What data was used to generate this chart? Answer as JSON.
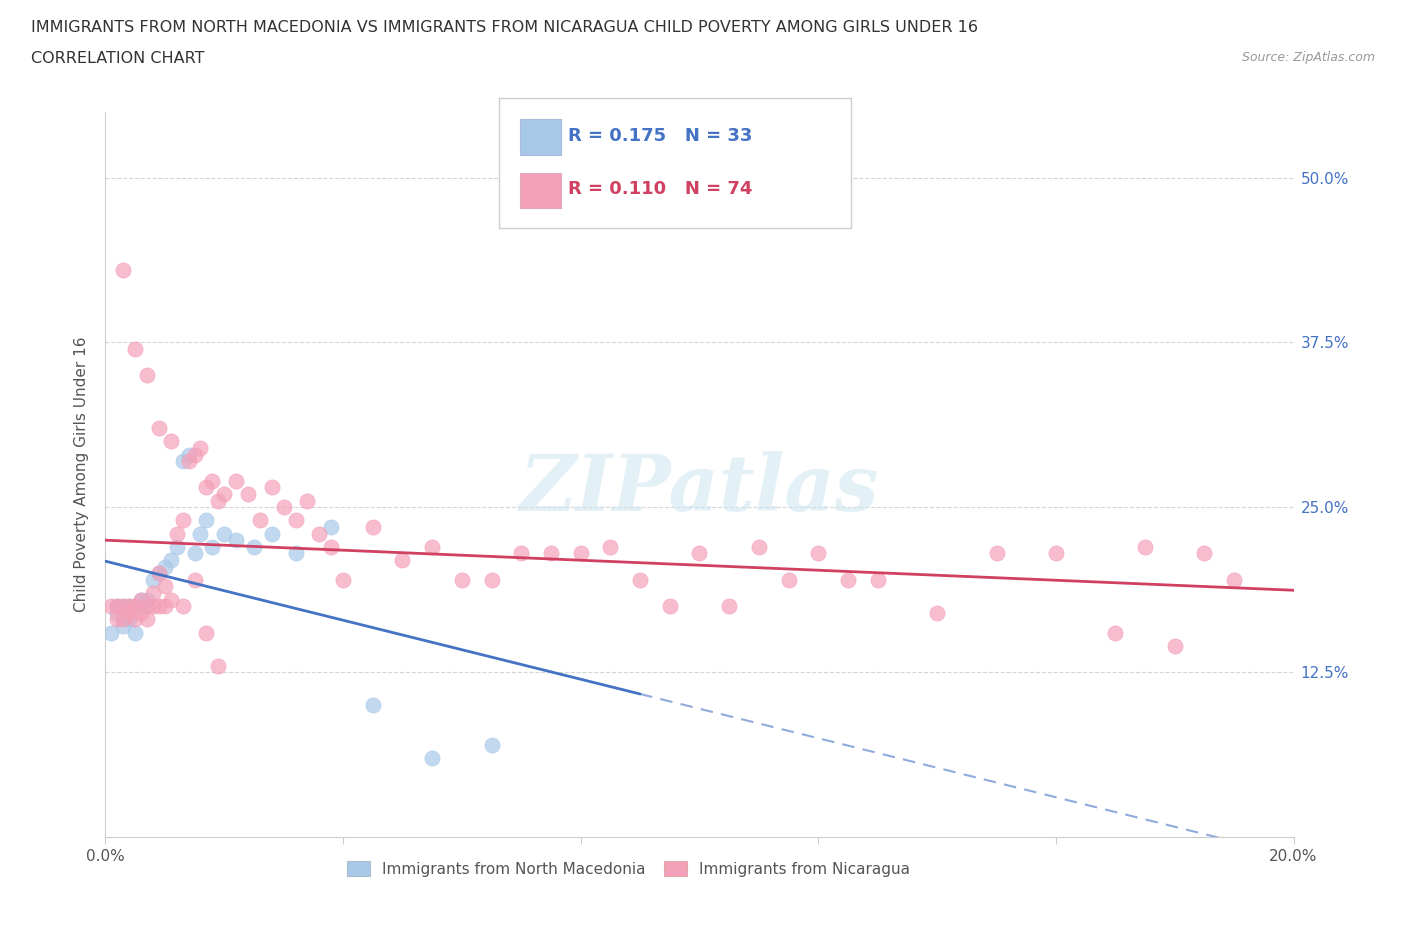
{
  "title_line1": "IMMIGRANTS FROM NORTH MACEDONIA VS IMMIGRANTS FROM NICARAGUA CHILD POVERTY AMONG GIRLS UNDER 16",
  "title_line2": "CORRELATION CHART",
  "source_text": "Source: ZipAtlas.com",
  "ylabel": "Child Poverty Among Girls Under 16",
  "xmin": 0.0,
  "xmax": 0.2,
  "ymin": 0.0,
  "ymax": 0.55,
  "R_blue": 0.175,
  "N_blue": 33,
  "R_pink": 0.11,
  "N_pink": 74,
  "color_blue": "#a8c8e8",
  "color_pink": "#f4a0b8",
  "color_blue_line": "#4472c4",
  "color_pink_line": "#d04060",
  "color_blue_text": "#4472c4",
  "color_pink_text": "#d04060",
  "legend_label_blue": "Immigrants from North Macedonia",
  "legend_label_pink": "Immigrants from Nicaragua",
  "watermark": "ZIPatlas",
  "blue_x": [
    0.001,
    0.002,
    0.002,
    0.003,
    0.003,
    0.004,
    0.004,
    0.005,
    0.005,
    0.006,
    0.006,
    0.007,
    0.007,
    0.008,
    0.009,
    0.01,
    0.011,
    0.012,
    0.013,
    0.014,
    0.015,
    0.016,
    0.017,
    0.018,
    0.02,
    0.022,
    0.025,
    0.028,
    0.032,
    0.038,
    0.045,
    0.055,
    0.065
  ],
  "blue_y": [
    0.155,
    0.17,
    0.175,
    0.16,
    0.175,
    0.165,
    0.175,
    0.155,
    0.175,
    0.18,
    0.175,
    0.18,
    0.175,
    0.195,
    0.2,
    0.205,
    0.21,
    0.22,
    0.285,
    0.29,
    0.215,
    0.23,
    0.24,
    0.22,
    0.23,
    0.225,
    0.22,
    0.23,
    0.215,
    0.235,
    0.1,
    0.06,
    0.07
  ],
  "pink_x": [
    0.001,
    0.002,
    0.002,
    0.003,
    0.003,
    0.004,
    0.004,
    0.005,
    0.005,
    0.006,
    0.006,
    0.007,
    0.007,
    0.008,
    0.008,
    0.009,
    0.009,
    0.01,
    0.01,
    0.011,
    0.012,
    0.013,
    0.014,
    0.015,
    0.016,
    0.017,
    0.018,
    0.019,
    0.02,
    0.022,
    0.024,
    0.026,
    0.028,
    0.03,
    0.032,
    0.034,
    0.036,
    0.038,
    0.04,
    0.045,
    0.05,
    0.055,
    0.06,
    0.065,
    0.07,
    0.075,
    0.08,
    0.085,
    0.09,
    0.095,
    0.1,
    0.105,
    0.11,
    0.115,
    0.12,
    0.125,
    0.13,
    0.14,
    0.15,
    0.16,
    0.17,
    0.175,
    0.18,
    0.185,
    0.19,
    0.003,
    0.005,
    0.007,
    0.009,
    0.011,
    0.013,
    0.015,
    0.017,
    0.019
  ],
  "pink_y": [
    0.175,
    0.165,
    0.175,
    0.165,
    0.175,
    0.175,
    0.17,
    0.165,
    0.175,
    0.17,
    0.18,
    0.175,
    0.165,
    0.175,
    0.185,
    0.175,
    0.2,
    0.175,
    0.19,
    0.18,
    0.23,
    0.24,
    0.285,
    0.29,
    0.295,
    0.265,
    0.27,
    0.255,
    0.26,
    0.27,
    0.26,
    0.24,
    0.265,
    0.25,
    0.24,
    0.255,
    0.23,
    0.22,
    0.195,
    0.235,
    0.21,
    0.22,
    0.195,
    0.195,
    0.215,
    0.215,
    0.215,
    0.22,
    0.195,
    0.175,
    0.215,
    0.175,
    0.22,
    0.195,
    0.215,
    0.195,
    0.195,
    0.17,
    0.215,
    0.215,
    0.155,
    0.22,
    0.145,
    0.215,
    0.195,
    0.43,
    0.37,
    0.35,
    0.31,
    0.3,
    0.175,
    0.195,
    0.155,
    0.13
  ]
}
